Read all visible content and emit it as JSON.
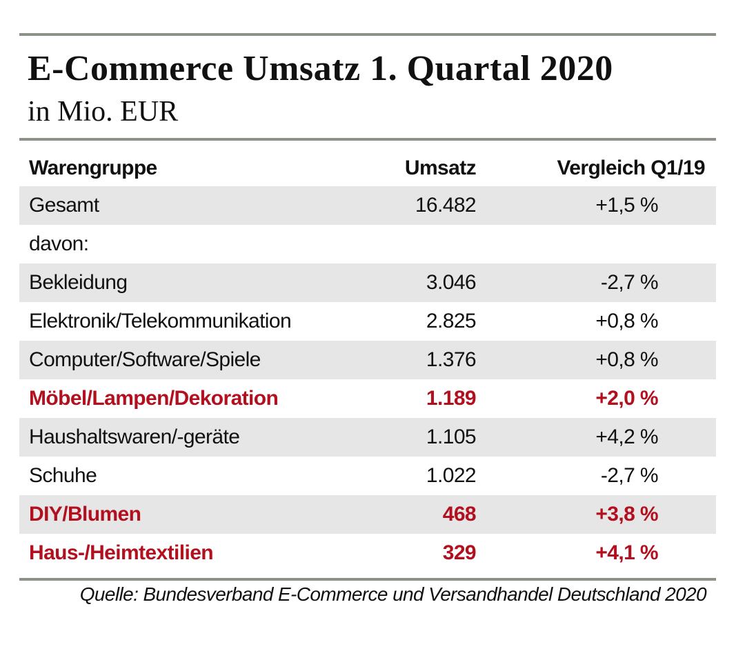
{
  "title": "E-Commerce Umsatz 1. Quartal 2020",
  "subtitle": "in Mio. EUR",
  "source": "Quelle: Bundesverband E-Commerce und Versandhandel Deutschland 2020",
  "colors": {
    "highlight": "#b2101f",
    "rule": "#8b9189",
    "stripe": "#e6e6e6"
  },
  "chart_data": {
    "type": "table",
    "title": "E-Commerce Umsatz 1. Quartal 2020",
    "subtitle": "in Mio. EUR",
    "columns": [
      "Warengruppe",
      "Umsatz",
      "Vergleich Q1/19"
    ],
    "rows": [
      {
        "label": "Gesamt",
        "umsatz": "16.482",
        "vergleich": "+1,5 %",
        "highlight": false
      },
      {
        "label": "davon:",
        "umsatz": "",
        "vergleich": "",
        "highlight": false
      },
      {
        "label": "Bekleidung",
        "umsatz": "3.046",
        "vergleich": "-2,7 %",
        "highlight": false
      },
      {
        "label": "Elektronik/Telekommunikation",
        "umsatz": "2.825",
        "vergleich": "+0,8 %",
        "highlight": false
      },
      {
        "label": "Computer/Software/Spiele",
        "umsatz": "1.376",
        "vergleich": "+0,8 %",
        "highlight": false
      },
      {
        "label": "Möbel/Lampen/Dekoration",
        "umsatz": "1.189",
        "vergleich": "+2,0 %",
        "highlight": true
      },
      {
        "label": "Haushaltswaren/-geräte",
        "umsatz": "1.105",
        "vergleich": "+4,2 %",
        "highlight": false
      },
      {
        "label": "Schuhe",
        "umsatz": "1.022",
        "vergleich": "-2,7 %",
        "highlight": false
      },
      {
        "label": "DIY/Blumen",
        "umsatz": "468",
        "vergleich": "+3,8 %",
        "highlight": true
      },
      {
        "label": "Haus-/Heimtextilien",
        "umsatz": "329",
        "vergleich": "+4,1 %",
        "highlight": true
      }
    ]
  }
}
